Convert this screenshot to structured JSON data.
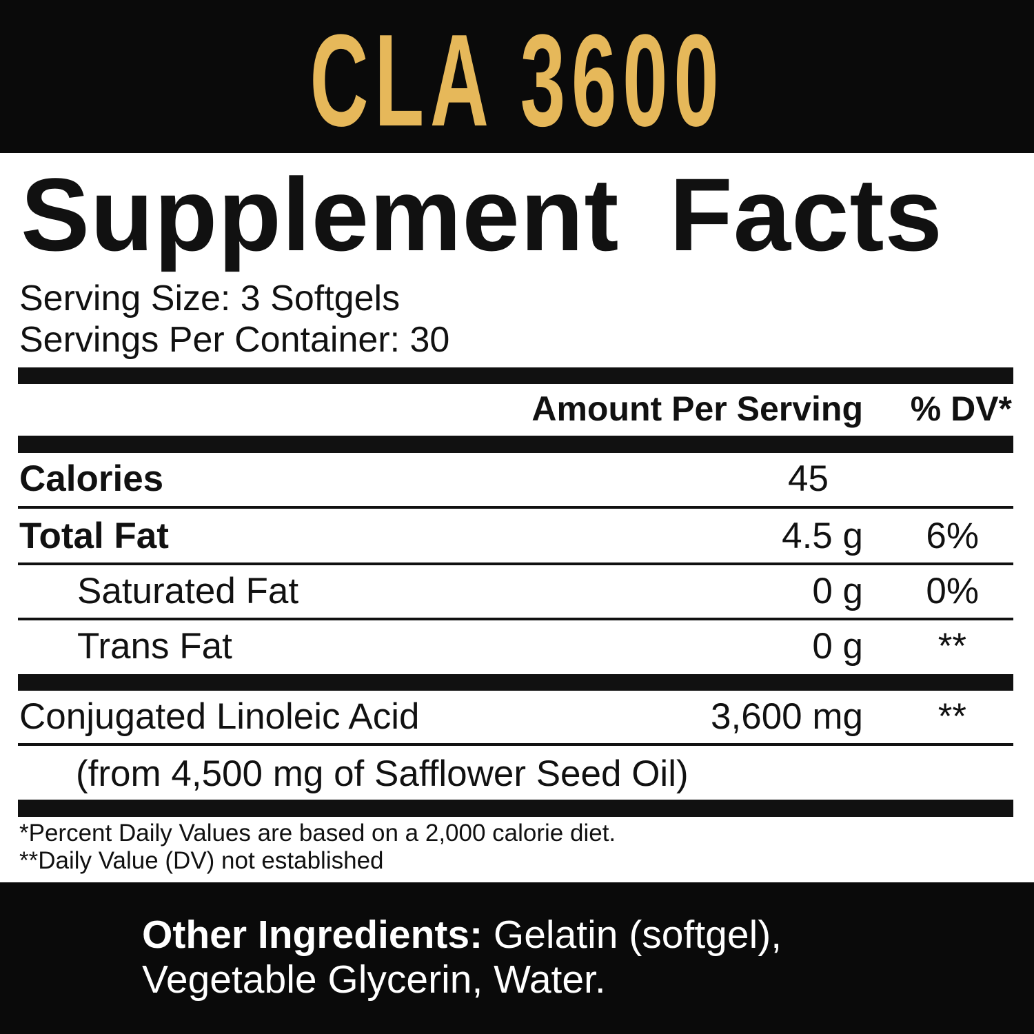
{
  "brand_title": "CLA 3600",
  "brand_color": "#e6b85a",
  "panel_title": "Supplement Facts",
  "serving_size": "Serving Size: 3 Softgels",
  "servings_per_container": "Servings Per Container: 30",
  "header": {
    "amount": "Amount Per Serving",
    "dv": "% DV*"
  },
  "rows": [
    {
      "name": "Calories",
      "amount": "45",
      "dv": ""
    },
    {
      "name": "Total Fat",
      "amount": "4.5 g",
      "dv": "6%"
    },
    {
      "name": "Saturated Fat",
      "amount": "0 g",
      "dv": "0%"
    },
    {
      "name": "Trans Fat",
      "amount": "0 g",
      "dv": "**"
    },
    {
      "name": "Conjugated Linoleic Acid",
      "amount": "3,600 mg",
      "dv": "**",
      "note": "(from 4,500 mg of Safflower Seed Oil)"
    }
  ],
  "footnotes": [
    "*Percent Daily Values are based on a 2,000 calorie diet.",
    "**Daily Value (DV) not established"
  ],
  "other_ingredients": {
    "label": "Other Ingredients:",
    "line1": " Gelatin (softgel),",
    "line2": "Vegetable Glycerin, Water."
  }
}
